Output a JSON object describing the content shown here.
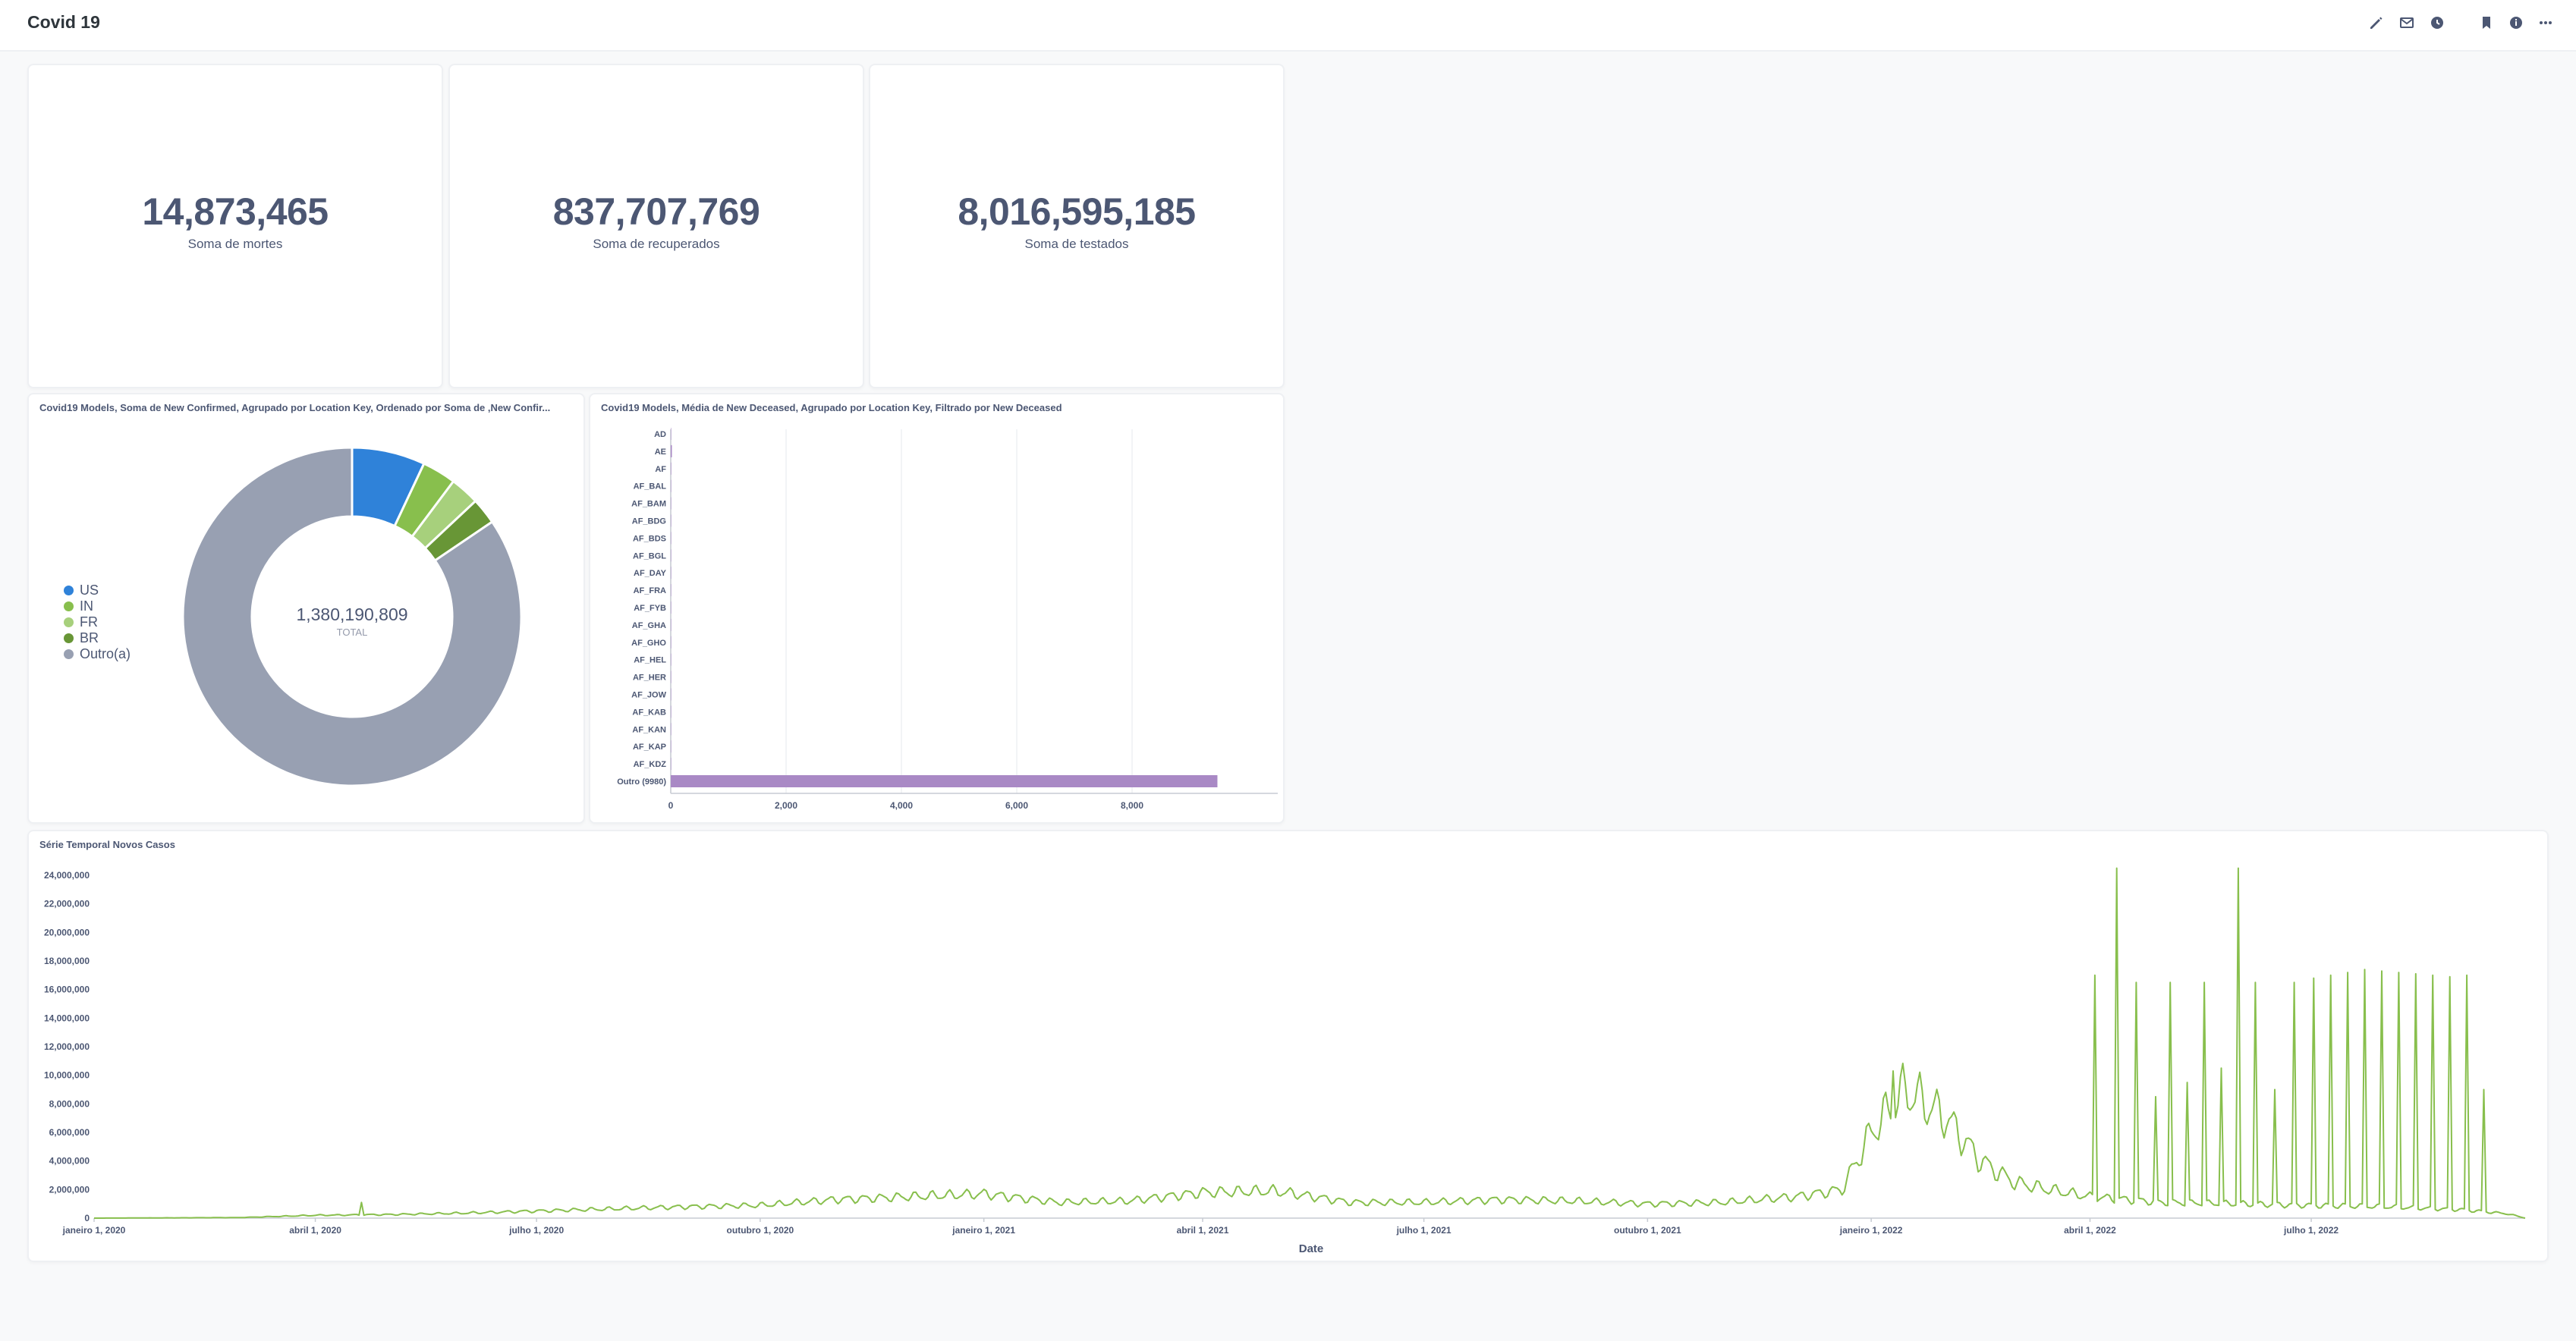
{
  "header": {
    "title": "Covid 19",
    "icons": [
      "pencil-icon",
      "subscriptions-icon",
      "history-icon",
      "bookmark-icon",
      "info-icon",
      "more-icon"
    ]
  },
  "scalars": [
    {
      "value": "14,873,465",
      "label": "Soma de mortes"
    },
    {
      "value": "837,707,769",
      "label": "Soma de recuperados"
    },
    {
      "value": "8,016,595,185",
      "label": "Soma de testados"
    }
  ],
  "donut": {
    "title": "Covid19 Models, Soma de New Confirmed, Agrupado por Location Key, Ordenado por Soma de ,New Confir...",
    "center_value": "1,380,190,809",
    "center_label": "TOTAL"
  },
  "bars": {
    "title": "Covid19 Models, Média de New Deceased, Agrupado por Location Key, Filtrado por New Deceased"
  },
  "timeseries": {
    "title": "Série Temporal Novos Casos"
  },
  "colors": {
    "blue": "#2f82d9",
    "green": "#88bf4d",
    "light_green": "#a7d07c",
    "dark_green": "#689636",
    "gray": "#98a0b2",
    "purple": "#a989c5",
    "line": "#88bf4d"
  },
  "chart_data": [
    {
      "type": "pie",
      "categories": [
        "US",
        "IN",
        "FR",
        "BR",
        "Outro(a)"
      ],
      "values": [
        96500000,
        44700000,
        38500000,
        34600000,
        1165890809
      ],
      "colors": [
        "#2f82d9",
        "#88bf4d",
        "#a7d07c",
        "#689636",
        "#98a0b2"
      ],
      "legend": "left"
    },
    {
      "type": "bar",
      "orientation": "horizontal",
      "categories": [
        "AD",
        "AE",
        "AF",
        "AF_BAL",
        "AF_BAM",
        "AF_BDG",
        "AF_BDS",
        "AF_BGL",
        "AF_DAY",
        "AF_FRA",
        "AF_FYB",
        "AF_GHA",
        "AF_GHO",
        "AF_HEL",
        "AF_HER",
        "AF_JOW",
        "AF_KAB",
        "AF_KAN",
        "AF_KAP",
        "AF_KDZ",
        "Outro (9980)"
      ],
      "values": [
        0.5,
        20,
        8,
        0.1,
        0.2,
        0.1,
        0.1,
        0.2,
        0.1,
        0.1,
        0.1,
        0.1,
        0.1,
        0.1,
        0.5,
        0.1,
        3,
        0.5,
        0.2,
        0.2,
        9480
      ],
      "xticks": [
        "0",
        "2,000",
        "4,000",
        "6,000",
        "8,000"
      ],
      "xlim": [
        0,
        10000
      ],
      "color": "#a989c5",
      "grid": true
    },
    {
      "type": "line",
      "xlabel": "Date",
      "ylabel": "",
      "xticks": [
        "janeiro 1, 2020",
        "abril 1, 2020",
        "julho 1, 2020",
        "outubro 1, 2020",
        "janeiro 1, 2021",
        "abril 1, 2021",
        "julho 1, 2021",
        "outubro 1, 2021",
        "janeiro 1, 2022",
        "abril 1, 2022",
        "julho 1, 2022"
      ],
      "yticks": [
        "0",
        "2,000,000",
        "4,000,000",
        "6,000,000",
        "8,000,000",
        "10,000,000",
        "12,000,000",
        "14,000,000",
        "16,000,000",
        "18,000,000",
        "20,000,000",
        "22,000,000",
        "24,000,000"
      ],
      "ylim": [
        0,
        24000000
      ],
      "x_range": [
        "2020-01-01",
        "2022-09-27"
      ],
      "keypoints": [
        [
          "2020-01-01",
          0
        ],
        [
          "2020-03-01",
          40000
        ],
        [
          "2020-04-01",
          200000
        ],
        [
          "2020-05-01",
          250000
        ],
        [
          "2020-06-01",
          350000
        ],
        [
          "2020-07-01",
          500000
        ],
        [
          "2020-08-01",
          650000
        ],
        [
          "2020-09-01",
          800000
        ],
        [
          "2020-10-01",
          900000
        ],
        [
          "2020-11-01",
          1300000
        ],
        [
          "2020-12-01",
          1500000
        ],
        [
          "2021-01-01",
          1700000
        ],
        [
          "2021-02-01",
          1100000
        ],
        [
          "2021-03-01",
          1200000
        ],
        [
          "2021-04-01",
          1800000
        ],
        [
          "2021-05-01",
          1900000
        ],
        [
          "2021-06-01",
          1100000
        ],
        [
          "2021-07-01",
          1100000
        ],
        [
          "2021-08-01",
          1300000
        ],
        [
          "2021-09-01",
          1200000
        ],
        [
          "2021-10-01",
          1000000
        ],
        [
          "2021-11-01",
          1100000
        ],
        [
          "2021-12-01",
          1500000
        ],
        [
          "2021-12-20",
          2000000
        ],
        [
          "2022-01-01",
          6000000
        ],
        [
          "2022-01-15",
          9000000
        ],
        [
          "2022-02-01",
          7000000
        ],
        [
          "2022-02-15",
          4000000
        ],
        [
          "2022-03-01",
          2500000
        ],
        [
          "2022-03-15",
          2000000
        ],
        [
          "2022-04-01",
          1500000
        ],
        [
          "2022-05-01",
          1100000
        ],
        [
          "2022-06-01",
          1000000
        ],
        [
          "2022-07-01",
          900000
        ],
        [
          "2022-08-01",
          800000
        ],
        [
          "2022-09-01",
          600000
        ],
        [
          "2022-09-20",
          300000
        ],
        [
          "2022-09-27",
          0
        ]
      ],
      "spikes": [
        [
          "2020-04-20",
          1100000
        ],
        [
          "2022-01-10",
          10300000
        ],
        [
          "2022-04-03",
          17000000
        ],
        [
          "2022-04-12",
          24500000
        ],
        [
          "2022-04-20",
          16500000
        ],
        [
          "2022-04-28",
          8500000
        ],
        [
          "2022-05-04",
          16500000
        ],
        [
          "2022-05-11",
          9500000
        ],
        [
          "2022-05-18",
          16500000
        ],
        [
          "2022-05-25",
          10500000
        ],
        [
          "2022-06-01",
          24500000
        ],
        [
          "2022-06-08",
          16500000
        ],
        [
          "2022-06-16",
          9000000
        ],
        [
          "2022-06-24",
          16500000
        ],
        [
          "2022-07-02",
          16800000
        ],
        [
          "2022-07-09",
          17000000
        ],
        [
          "2022-07-16",
          17200000
        ],
        [
          "2022-07-23",
          17400000
        ],
        [
          "2022-07-30",
          17300000
        ],
        [
          "2022-08-06",
          17200000
        ],
        [
          "2022-08-13",
          17100000
        ],
        [
          "2022-08-20",
          17000000
        ],
        [
          "2022-08-27",
          16900000
        ],
        [
          "2022-09-03",
          17000000
        ],
        [
          "2022-09-10",
          9000000
        ]
      ],
      "color": "#88bf4d"
    }
  ]
}
